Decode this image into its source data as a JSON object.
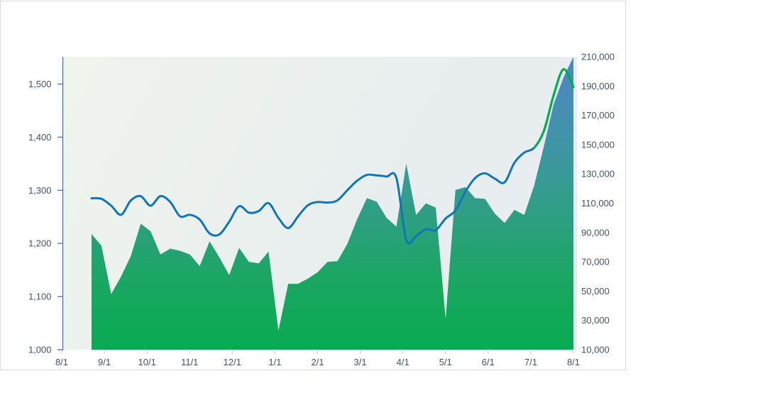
{
  "window": {
    "background_color": "#ffffff",
    "panel_border_color": "#d9d9d9"
  },
  "chart_data": {
    "type": "area",
    "title": "",
    "subtitle": "",
    "legend": "none",
    "grid": "off",
    "x": [
      "8/22",
      "8/29",
      "9/5",
      "9/12",
      "9/19",
      "9/26",
      "10/3",
      "10/10",
      "10/17",
      "10/24",
      "10/31",
      "11/7",
      "11/14",
      "11/21",
      "11/28",
      "12/5",
      "12/12",
      "12/19",
      "12/26",
      "1/2",
      "1/9",
      "1/16",
      "1/23",
      "1/30",
      "2/6",
      "2/13",
      "2/20",
      "2/27",
      "3/6",
      "3/13",
      "3/20",
      "3/27",
      "4/3",
      "4/10",
      "4/17",
      "4/24",
      "5/1",
      "5/8",
      "5/15",
      "5/22",
      "5/29",
      "6/5",
      "6/12",
      "6/19",
      "6/26",
      "7/3",
      "7/10",
      "7/17",
      "7/24",
      "7/31"
    ],
    "x_axis": {
      "tick_labels": [
        "8/1",
        "9/1",
        "10/1",
        "11/1",
        "12/1",
        "1/1",
        "2/1",
        "3/1",
        "4/1",
        "5/1",
        "6/1",
        "7/1",
        "8/1"
      ],
      "tick_color": "#c9c9c9",
      "label_color": "#44546a"
    },
    "left_axis": {
      "range": [
        1000,
        1551
      ],
      "tick_labels": [
        "1,000",
        "1,100",
        "1,200",
        "1,300",
        "1,400",
        "1,500"
      ],
      "tick_values": [
        1000,
        1100,
        1200,
        1300,
        1400,
        1500
      ],
      "axis_line_color": "#4472c4",
      "label_color": "#44546a"
    },
    "right_axis": {
      "range": [
        10000,
        210000
      ],
      "tick_labels": [
        "10,000",
        "30,000",
        "50,000",
        "70,000",
        "90,000",
        "110,000",
        "130,000",
        "150,000",
        "170,000",
        "190,000",
        "210,000"
      ],
      "tick_values": [
        10000,
        30000,
        50000,
        70000,
        90000,
        110000,
        130000,
        150000,
        170000,
        190000,
        210000
      ],
      "axis_line_color": "none",
      "label_color": "#44546a"
    },
    "series": [
      {
        "name": "volume-area",
        "type": "area",
        "yaxis": "right",
        "values": [
          89000,
          81000,
          48000,
          60000,
          74000,
          96000,
          91000,
          75000,
          79000,
          77500,
          75000,
          67000,
          84000,
          73000,
          61000,
          79500,
          70000,
          69000,
          77000,
          23000,
          55000,
          55000,
          58500,
          63000,
          70000,
          70500,
          82000,
          99000,
          113500,
          111000,
          100000,
          94000,
          137000,
          102000,
          110000,
          107000,
          31000,
          119000,
          121000,
          113500,
          113000,
          103000,
          96500,
          105500,
          102000,
          122000,
          149000,
          178000,
          196000,
          210000
        ],
        "fill_gradient_top_to_bottom": [
          "#4e85c4",
          "#4293ab",
          "#329d88",
          "#1ba663",
          "#08ab52"
        ]
      },
      {
        "name": "price-line",
        "type": "line",
        "yaxis": "left",
        "smoothed": true,
        "values": [
          1285,
          1284,
          1271,
          1254,
          1281,
          1289,
          1271,
          1289,
          1278,
          1251,
          1254,
          1245,
          1219,
          1217,
          1241,
          1270,
          1258,
          1261,
          1276,
          1248,
          1229,
          1251,
          1272,
          1278,
          1277,
          1281,
          1300,
          1318,
          1329,
          1328,
          1326,
          1323,
          1207,
          1214,
          1227,
          1225,
          1247,
          1262,
          1297,
          1323,
          1332,
          1322,
          1315,
          1352,
          1371,
          1380,
          1412,
          1480,
          1528,
          1494
        ],
        "color_segments": [
          {
            "from_index": 0,
            "to_index": 45,
            "color": "#1076b6"
          },
          {
            "from_index": 45,
            "to_index": 49,
            "color": "#00ad4f"
          }
        ]
      }
    ],
    "plot_background_gradient": [
      "#f0f4ed",
      "#e9efee",
      "#e6ecf1"
    ]
  }
}
